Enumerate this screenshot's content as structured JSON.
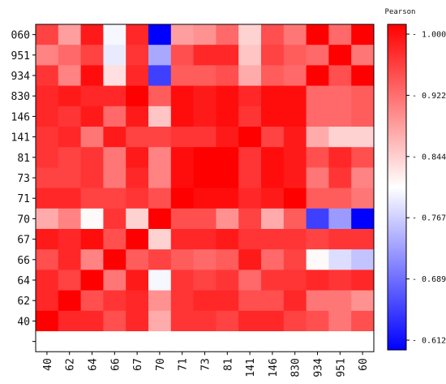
{
  "chart_data": {
    "type": "heatmap",
    "title": "",
    "xlabel": "",
    "ylabel": "",
    "x_categories": [
      "40",
      "62",
      "64",
      "66",
      "67",
      "70",
      "71",
      "73",
      "81",
      "141",
      "146",
      "830",
      "934",
      "951",
      "60"
    ],
    "y_categories": [
      "060",
      "951",
      "934",
      "830",
      "146",
      "141",
      "81",
      "73",
      "71",
      "70",
      "67",
      "66",
      "64",
      "62",
      "40",
      ""
    ],
    "values": [
      [
        0.95,
        0.88,
        0.98,
        0.8,
        0.97,
        0.61,
        0.88,
        0.89,
        0.92,
        0.84,
        0.94,
        0.91,
        1.0,
        0.92,
        1.0
      ],
      [
        0.9,
        0.92,
        0.95,
        0.79,
        0.96,
        0.74,
        0.94,
        0.97,
        0.97,
        0.85,
        0.95,
        0.93,
        0.92,
        1.0,
        0.91
      ],
      [
        0.96,
        0.9,
        0.99,
        0.83,
        0.97,
        0.66,
        0.93,
        0.93,
        0.94,
        0.87,
        0.93,
        0.92,
        1.0,
        0.94,
        1.0
      ],
      [
        0.97,
        0.98,
        0.97,
        0.97,
        1.0,
        0.93,
        0.99,
        0.98,
        0.99,
        0.97,
        0.99,
        0.99,
        0.92,
        0.92,
        0.93
      ],
      [
        0.97,
        0.96,
        0.98,
        0.92,
        0.98,
        0.85,
        0.99,
        0.98,
        0.99,
        0.96,
        0.99,
        0.99,
        0.92,
        0.92,
        0.93
      ],
      [
        0.96,
        0.97,
        0.91,
        0.98,
        0.95,
        0.95,
        0.96,
        0.96,
        0.98,
        1.0,
        0.95,
        0.98,
        0.87,
        0.84,
        0.84
      ],
      [
        0.96,
        0.95,
        0.96,
        0.91,
        0.98,
        0.9,
        0.99,
        1.0,
        1.0,
        0.96,
        0.99,
        0.98,
        0.94,
        0.97,
        0.94
      ],
      [
        0.95,
        0.95,
        0.96,
        0.91,
        0.97,
        0.9,
        0.99,
        1.0,
        1.0,
        0.96,
        0.99,
        0.98,
        0.91,
        0.96,
        0.9
      ],
      [
        0.97,
        0.97,
        0.95,
        0.95,
        0.96,
        0.94,
        1.0,
        0.99,
        0.99,
        0.97,
        0.98,
        1.0,
        0.93,
        0.93,
        0.91
      ],
      [
        0.87,
        0.9,
        0.81,
        0.96,
        0.84,
        1.0,
        0.94,
        0.94,
        0.89,
        0.95,
        0.87,
        0.93,
        0.66,
        0.73,
        0.61
      ],
      [
        0.98,
        0.97,
        0.99,
        0.94,
        1.0,
        0.84,
        0.97,
        0.97,
        0.98,
        0.96,
        0.96,
        0.96,
        0.95,
        0.96,
        0.96
      ],
      [
        0.94,
        0.97,
        0.9,
        1.0,
        0.93,
        0.95,
        0.93,
        0.92,
        0.93,
        0.98,
        0.92,
        0.95,
        0.81,
        0.78,
        0.76
      ],
      [
        0.97,
        0.95,
        1.0,
        0.91,
        0.98,
        0.8,
        0.96,
        0.95,
        0.96,
        0.92,
        0.96,
        0.96,
        0.97,
        0.96,
        0.97
      ],
      [
        0.97,
        1.0,
        0.94,
        0.96,
        0.97,
        0.89,
        0.96,
        0.97,
        0.97,
        0.94,
        0.94,
        0.97,
        0.91,
        0.91,
        0.89
      ],
      [
        1.0,
        0.97,
        0.97,
        0.94,
        0.97,
        0.87,
        0.96,
        0.96,
        0.95,
        0.97,
        0.97,
        0.95,
        0.94,
        0.91,
        0.94
      ],
      [
        null,
        null,
        null,
        null,
        null,
        null,
        null,
        null,
        null,
        null,
        null,
        null,
        null,
        null,
        null
      ]
    ],
    "colorbar": {
      "label": "Pearson",
      "min": 0.612,
      "max": 1.0,
      "ticks": [
        "1.000",
        "0.9224",
        "0.8448",
        "0.7672",
        "0.6896",
        "0.6120"
      ],
      "colors": [
        "#0000ff",
        "#ffffff",
        "#ff0000"
      ]
    }
  }
}
